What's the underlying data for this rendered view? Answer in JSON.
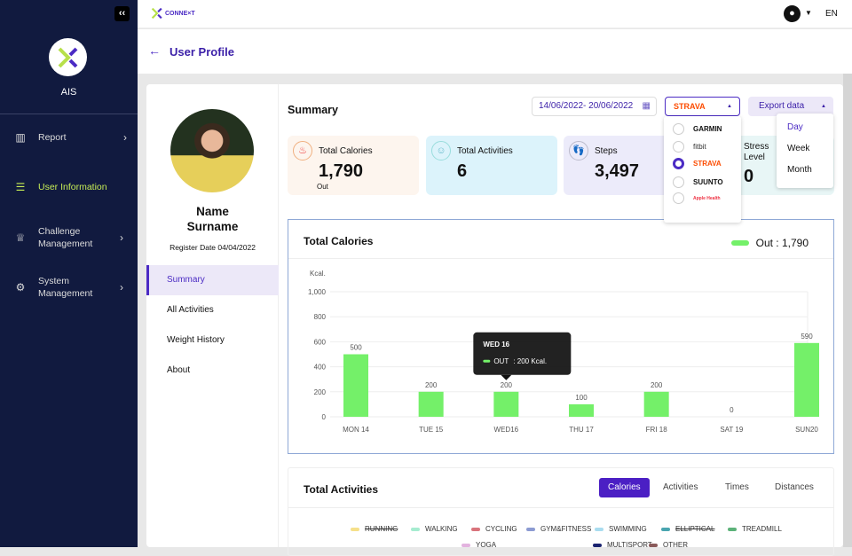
{
  "sidebar": {
    "org": "AIS",
    "items": [
      {
        "label": "Report",
        "icon": "bar-chart-icon"
      },
      {
        "label": "User  Information",
        "icon": "user-list-icon",
        "active": true
      },
      {
        "label": "Challenge Management",
        "icon": "trophy-icon"
      },
      {
        "label": "System Management",
        "icon": "gear-icon"
      }
    ]
  },
  "topbar": {
    "brand": "CONNE×T",
    "lang": "EN"
  },
  "page": {
    "title": "User Profile"
  },
  "profile": {
    "name": "Name Surname",
    "register": "Register Date 04/04/2022",
    "nav": [
      "Summary",
      "All Activities",
      "Weight History",
      "About"
    ]
  },
  "summary": {
    "title": "Summary",
    "date_range": "14/06/2022- 20/06/2022",
    "provider": "STRAVA",
    "export_label": "Export data",
    "providers": [
      "GARMIN",
      "fitbit",
      "STRAVA",
      "SUUNTO",
      "Apple Health"
    ],
    "selected_provider": "STRAVA",
    "export_options": [
      "Day",
      "Week",
      "Month"
    ],
    "stats": [
      {
        "title": "Total Calories",
        "value": "1,790",
        "sub": "Out",
        "bg": "#fdf5ee"
      },
      {
        "title": "Total Activities",
        "value": "6",
        "bg": "#dcf3fb"
      },
      {
        "title": "Steps",
        "value": "3,497",
        "bg": "#ecebfa"
      },
      {
        "title": "Stress Level",
        "value": "0",
        "bg": "#e8f6f6"
      }
    ]
  },
  "calories_chart": {
    "title": "Total Calories",
    "legend": "Out :  1,790",
    "tooltip": {
      "title": "WED 16",
      "label": "OUT",
      "value": ": 200 Kcal."
    }
  },
  "chart_data": {
    "type": "bar",
    "ylabel": "Kcal.",
    "categories": [
      "MON 14",
      "TUE 15",
      "WED16",
      "THU 17",
      "FRI 18",
      "SAT 19",
      "SUN20"
    ],
    "series": [
      {
        "name": "Out",
        "values": [
          500,
          200,
          200,
          100,
          200,
          0,
          590
        ]
      }
    ],
    "ylim": [
      0,
      1000
    ],
    "yticks": [
      "0",
      "200",
      "400",
      "600",
      "800",
      "1,000"
    ],
    "grid": true,
    "color": "#74f069"
  },
  "activities": {
    "title": "Total Activities",
    "tabs": [
      "Calories",
      "Activities",
      "Times",
      "Distances"
    ],
    "active_tab": "Calories",
    "legend": [
      {
        "name": "RUNNING",
        "color": "#f6e08a",
        "off": true
      },
      {
        "name": "WALKING",
        "color": "#a6ecd0"
      },
      {
        "name": "CYCLING",
        "color": "#d9747c"
      },
      {
        "name": "GYM&FITNESS",
        "color": "#8c9bd2"
      },
      {
        "name": "SWIMMING",
        "color": "#a9dcef"
      },
      {
        "name": "ELLIPTICAL",
        "color": "#4aa5b0",
        "off": true
      },
      {
        "name": "TREADMILL",
        "color": "#5cb279"
      },
      {
        "name": "YOGA",
        "color": "#e3b3df"
      },
      {
        "name": "MULTISPORT",
        "color": "#1a2370"
      },
      {
        "name": "OTHER",
        "color": "#8a5a5a"
      }
    ]
  }
}
